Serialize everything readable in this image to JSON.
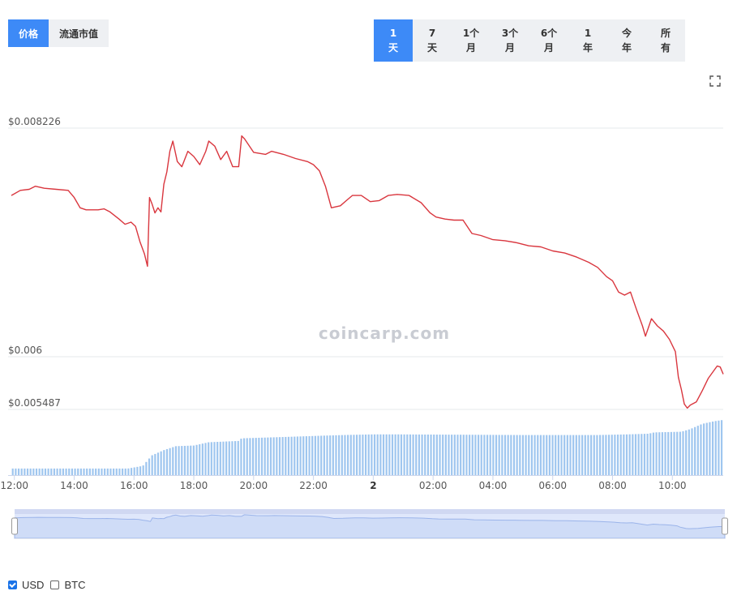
{
  "type_switch": [
    {
      "label": "价格",
      "active": true
    },
    {
      "label": "流通市值",
      "active": false
    }
  ],
  "range_switch": [
    {
      "label": "1\n天",
      "active": true
    },
    {
      "label": "7\n天",
      "active": false
    },
    {
      "label": "1个\n月",
      "active": false
    },
    {
      "label": "3个\n月",
      "active": false
    },
    {
      "label": "6个\n月",
      "active": false
    },
    {
      "label": "1\n年",
      "active": false
    },
    {
      "label": "今\n年",
      "active": false
    },
    {
      "label": "所\n有",
      "active": false
    }
  ],
  "watermark": "coincarp.com",
  "legend": [
    {
      "label": "USD",
      "checked": true
    },
    {
      "label": "BTC",
      "checked": false
    }
  ],
  "colors": {
    "accent": "#3d8af7",
    "price_line": "#d9363e",
    "volume_bar": "#9fc6ef",
    "navigator_fill": "#dfe7fb"
  },
  "chart_data": {
    "type": "line",
    "ylabels": [
      "$0.008226",
      "$0.006",
      "$0.005487"
    ],
    "yticks": [
      0.008226,
      0.006,
      0.005487
    ],
    "ylim": [
      0.005487,
      0.008226
    ],
    "xlim": [
      -0.1,
      23.7
    ],
    "xticks": [
      {
        "x": 0,
        "label": "12:00"
      },
      {
        "x": 2,
        "label": "14:00"
      },
      {
        "x": 4,
        "label": "16:00"
      },
      {
        "x": 6,
        "label": "18:00"
      },
      {
        "x": 8,
        "label": "20:00"
      },
      {
        "x": 10,
        "label": "22:00"
      },
      {
        "x": 12,
        "label": "2",
        "bold": true
      },
      {
        "x": 14,
        "label": "02:00"
      },
      {
        "x": 16,
        "label": "04:00"
      },
      {
        "x": 18,
        "label": "06:00"
      },
      {
        "x": 20,
        "label": "08:00"
      },
      {
        "x": 22,
        "label": "10:00"
      }
    ],
    "price": [
      [
        -0.1,
        0.00757
      ],
      [
        0.2,
        0.00762
      ],
      [
        0.5,
        0.00763
      ],
      [
        0.7,
        0.00766
      ],
      [
        1.0,
        0.00764
      ],
      [
        1.4,
        0.00763
      ],
      [
        1.8,
        0.00762
      ],
      [
        2.0,
        0.00755
      ],
      [
        2.2,
        0.00745
      ],
      [
        2.4,
        0.00743
      ],
      [
        2.8,
        0.00743
      ],
      [
        3.0,
        0.00744
      ],
      [
        3.2,
        0.00741
      ],
      [
        3.5,
        0.00734
      ],
      [
        3.7,
        0.00729
      ],
      [
        3.9,
        0.00731
      ],
      [
        4.05,
        0.00727
      ],
      [
        4.2,
        0.00712
      ],
      [
        4.35,
        0.007
      ],
      [
        4.45,
        0.00688
      ],
      [
        4.52,
        0.00755
      ],
      [
        4.6,
        0.00749
      ],
      [
        4.7,
        0.0074
      ],
      [
        4.8,
        0.00745
      ],
      [
        4.9,
        0.00741
      ],
      [
        5.0,
        0.00768
      ],
      [
        5.1,
        0.0078
      ],
      [
        5.2,
        0.008
      ],
      [
        5.3,
        0.0081
      ],
      [
        5.45,
        0.0079
      ],
      [
        5.6,
        0.00785
      ],
      [
        5.8,
        0.008
      ],
      [
        6.0,
        0.00795
      ],
      [
        6.2,
        0.00787
      ],
      [
        6.4,
        0.008
      ],
      [
        6.5,
        0.0081
      ],
      [
        6.7,
        0.00805
      ],
      [
        6.9,
        0.00792
      ],
      [
        7.1,
        0.008
      ],
      [
        7.3,
        0.00785
      ],
      [
        7.5,
        0.00785
      ],
      [
        7.6,
        0.00815
      ],
      [
        7.7,
        0.00812
      ],
      [
        8.0,
        0.00799
      ],
      [
        8.4,
        0.00797
      ],
      [
        8.6,
        0.008
      ],
      [
        9.0,
        0.00797
      ],
      [
        9.4,
        0.00793
      ],
      [
        9.8,
        0.0079
      ],
      [
        10.0,
        0.00787
      ],
      [
        10.2,
        0.00781
      ],
      [
        10.4,
        0.00766
      ],
      [
        10.6,
        0.00745
      ],
      [
        10.9,
        0.00747
      ],
      [
        11.1,
        0.00752
      ],
      [
        11.3,
        0.00757
      ],
      [
        11.6,
        0.00757
      ],
      [
        11.9,
        0.00751
      ],
      [
        12.2,
        0.00752
      ],
      [
        12.5,
        0.00757
      ],
      [
        12.8,
        0.00758
      ],
      [
        13.2,
        0.00757
      ],
      [
        13.6,
        0.0075
      ],
      [
        13.9,
        0.0074
      ],
      [
        14.1,
        0.00736
      ],
      [
        14.4,
        0.00734
      ],
      [
        14.7,
        0.00733
      ],
      [
        15.0,
        0.00733
      ],
      [
        15.3,
        0.0072
      ],
      [
        15.6,
        0.00718
      ],
      [
        16.0,
        0.00714
      ],
      [
        16.4,
        0.00713
      ],
      [
        16.8,
        0.00711
      ],
      [
        17.2,
        0.00708
      ],
      [
        17.6,
        0.00707
      ],
      [
        18.0,
        0.00703
      ],
      [
        18.4,
        0.00701
      ],
      [
        18.8,
        0.00697
      ],
      [
        19.2,
        0.00692
      ],
      [
        19.5,
        0.00687
      ],
      [
        19.8,
        0.00678
      ],
      [
        20.0,
        0.00674
      ],
      [
        20.2,
        0.00663
      ],
      [
        20.4,
        0.0066
      ],
      [
        20.6,
        0.00663
      ],
      [
        20.8,
        0.00646
      ],
      [
        21.0,
        0.0063
      ],
      [
        21.1,
        0.0062
      ],
      [
        21.3,
        0.00637
      ],
      [
        21.5,
        0.0063
      ],
      [
        21.7,
        0.00625
      ],
      [
        21.9,
        0.00617
      ],
      [
        22.1,
        0.00605
      ],
      [
        22.2,
        0.0058
      ],
      [
        22.3,
        0.00568
      ],
      [
        22.4,
        0.00554
      ],
      [
        22.5,
        0.0055
      ],
      [
        22.6,
        0.00553
      ],
      [
        22.8,
        0.00556
      ],
      [
        23.0,
        0.00567
      ],
      [
        23.2,
        0.00579
      ],
      [
        23.4,
        0.00587
      ],
      [
        23.5,
        0.00591
      ],
      [
        23.6,
        0.0059
      ],
      [
        23.7,
        0.00583
      ]
    ],
    "volume": [
      [
        -0.1,
        0.1
      ],
      [
        3.8,
        0.1
      ],
      [
        4.3,
        0.14
      ],
      [
        4.6,
        0.3
      ],
      [
        5.0,
        0.38
      ],
      [
        5.4,
        0.44
      ],
      [
        6.0,
        0.45
      ],
      [
        6.5,
        0.5
      ],
      [
        7.5,
        0.52
      ],
      [
        7.6,
        0.56
      ],
      [
        9.0,
        0.58
      ],
      [
        10.3,
        0.6
      ],
      [
        11.0,
        0.61
      ],
      [
        12.0,
        0.62
      ],
      [
        12.8,
        0.62
      ],
      [
        17.0,
        0.61
      ],
      [
        19.5,
        0.61
      ],
      [
        20.5,
        0.62
      ],
      [
        21.2,
        0.63
      ],
      [
        21.4,
        0.65
      ],
      [
        22.3,
        0.66
      ],
      [
        22.6,
        0.7
      ],
      [
        23.0,
        0.78
      ],
      [
        23.4,
        0.82
      ],
      [
        23.7,
        0.84
      ]
    ]
  }
}
